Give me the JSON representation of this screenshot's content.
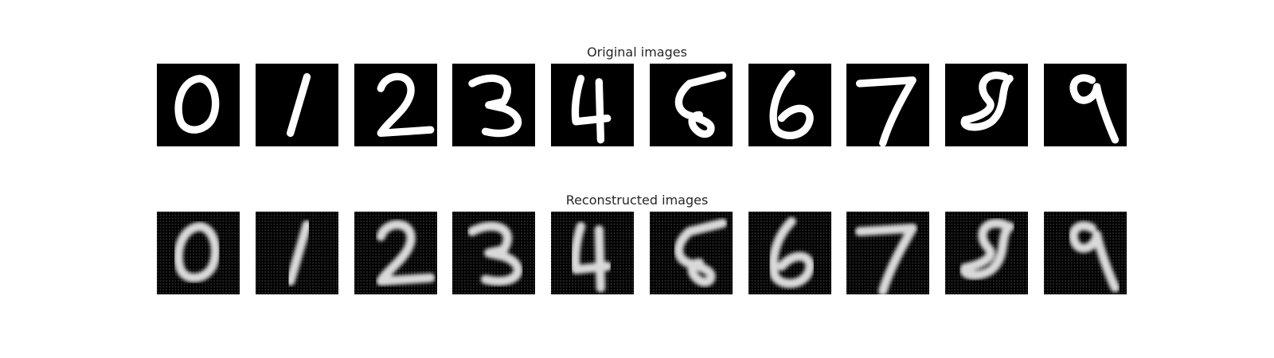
{
  "figure": {
    "original": {
      "title": "Original images",
      "digits": [
        "0",
        "1",
        "2",
        "3",
        "4",
        "5",
        "6",
        "7",
        "8",
        "9"
      ]
    },
    "reconstructed": {
      "title": "Reconstructed images",
      "digits": [
        "0",
        "1",
        "2",
        "3",
        "4",
        "5",
        "6",
        "7",
        "8",
        "9"
      ]
    }
  },
  "colors": {
    "background": "#ffffff",
    "panel": "#000000",
    "stroke": "#ffffff",
    "title_text": "#262626"
  }
}
